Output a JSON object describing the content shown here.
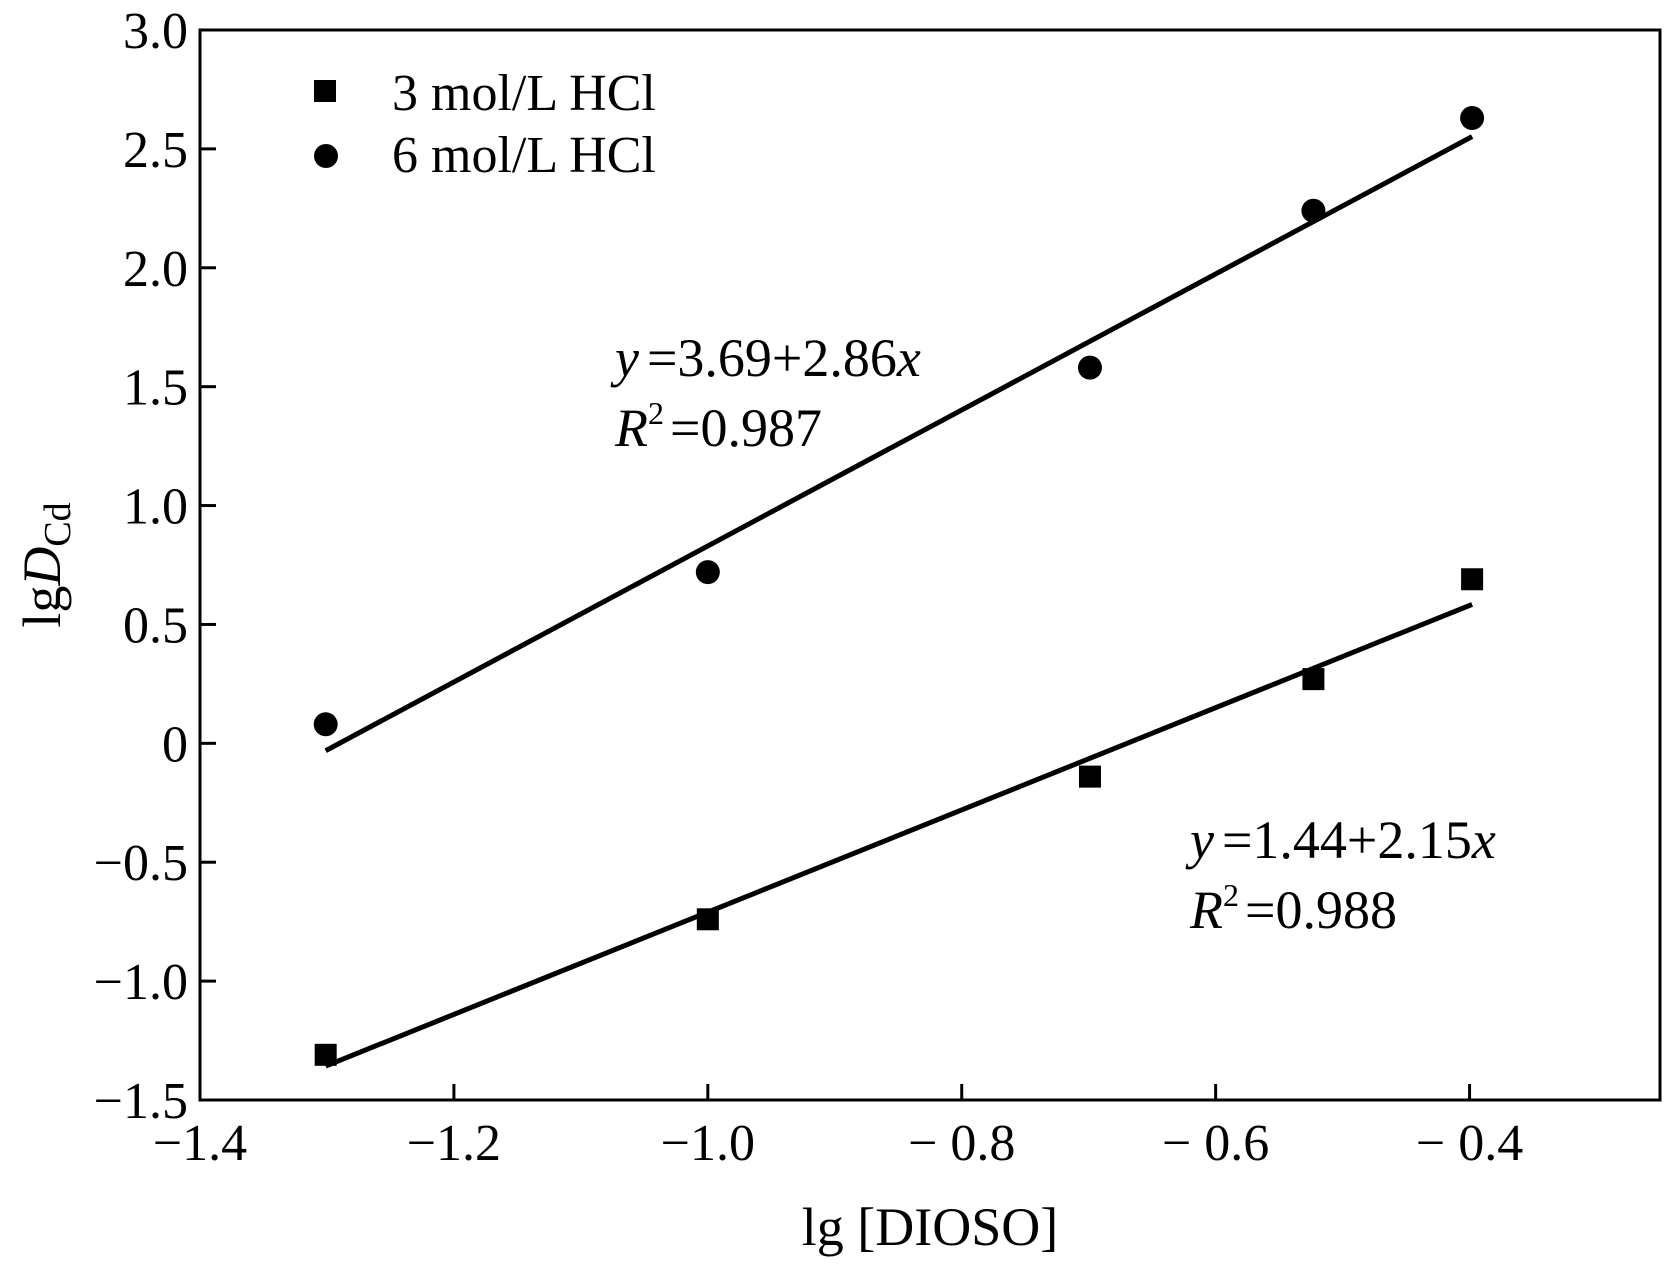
{
  "chart_data": {
    "type": "scatter",
    "xlabel": "lg [DIOSO]",
    "ylabel_prefix": "lg",
    "ylabel_var": "D",
    "ylabel_sub": "Cd",
    "xlim": [
      -1.4,
      -0.25
    ],
    "ylim": [
      -1.5,
      3.0
    ],
    "xticks": [
      -1.4,
      -1.2,
      -1.0,
      -0.8,
      -0.6,
      -0.4
    ],
    "xtick_labels": [
      "−1.4",
      "−1.2",
      "−1.0",
      "− 0.8",
      "− 0.6",
      "− 0.4"
    ],
    "yticks": [
      -1.5,
      -1.0,
      -0.5,
      0,
      0.5,
      1.0,
      1.5,
      2.0,
      2.5,
      3.0
    ],
    "ytick_labels": [
      "−1.5",
      "−1.0",
      "−0.5",
      "0",
      "0.5",
      "1.0",
      "1.5",
      "2.0",
      "2.5",
      "3.0"
    ],
    "grid": false,
    "legend_position": "top-left",
    "series": [
      {
        "name": "3 mol/L HCl",
        "marker": "square",
        "x": [
          -1.301,
          -1.0,
          -0.699,
          -0.523,
          -0.398
        ],
        "y": [
          -1.31,
          -0.74,
          -0.14,
          0.27,
          0.69
        ],
        "fit": {
          "intercept": 1.44,
          "slope": 2.15,
          "x_range": [
            -1.301,
            -0.398
          ]
        },
        "equation_lhs": "y",
        "equation_rhs": "=1.44+2.15",
        "equation_var": "x",
        "r2_lhs": "R",
        "r2_sup": "2",
        "r2_rhs": "=0.988"
      },
      {
        "name": "6 mol/L HCl",
        "marker": "circle",
        "x": [
          -1.301,
          -1.0,
          -0.699,
          -0.523,
          -0.398
        ],
        "y": [
          0.08,
          0.72,
          1.58,
          2.24,
          2.63
        ],
        "fit": {
          "intercept": 3.69,
          "slope": 2.86,
          "x_range": [
            -1.301,
            -0.398
          ]
        },
        "equation_lhs": "y",
        "equation_rhs": "=3.69+2.86",
        "equation_var": "x",
        "r2_lhs": "R",
        "r2_sup": "2",
        "r2_rhs": "=0.987"
      }
    ]
  }
}
